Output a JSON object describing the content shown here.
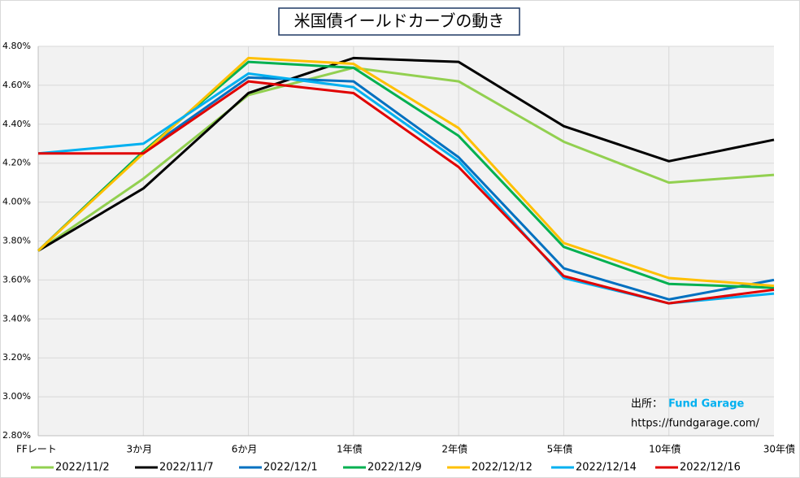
{
  "chart_data": {
    "type": "line",
    "title": "米国債イールドカーブの動き",
    "categories": [
      "FFレート",
      "3か月",
      "6か月",
      "1年債",
      "2年債",
      "5年債",
      "10年債",
      "30年債"
    ],
    "series": [
      {
        "name": "2022/11/2",
        "color": "#92d050",
        "values": [
          3.75,
          4.12,
          4.55,
          4.69,
          4.62,
          4.31,
          4.1,
          4.14
        ]
      },
      {
        "name": "2022/11/7",
        "color": "#000000",
        "values": [
          3.75,
          4.07,
          4.56,
          4.74,
          4.72,
          4.39,
          4.21,
          4.32
        ]
      },
      {
        "name": "2022/12/1",
        "color": "#0070c0",
        "values": [
          3.75,
          4.26,
          4.64,
          4.62,
          4.23,
          3.66,
          3.5,
          3.6
        ]
      },
      {
        "name": "2022/12/9",
        "color": "#00b050",
        "values": [
          3.75,
          4.26,
          4.72,
          4.69,
          4.34,
          3.77,
          3.58,
          3.56
        ]
      },
      {
        "name": "2022/12/12",
        "color": "#ffc000",
        "values": [
          3.75,
          4.25,
          4.74,
          4.71,
          4.38,
          3.79,
          3.61,
          3.57
        ]
      },
      {
        "name": "2022/12/14",
        "color": "#00b0f0",
        "values": [
          4.25,
          4.3,
          4.66,
          4.59,
          4.21,
          3.61,
          3.48,
          3.53
        ]
      },
      {
        "name": "2022/12/16",
        "color": "#e00000",
        "values": [
          4.25,
          4.25,
          4.62,
          4.56,
          4.18,
          3.62,
          3.48,
          3.55
        ]
      }
    ],
    "ylim": [
      2.8,
      4.8
    ],
    "yticks": [
      {
        "value": 2.8,
        "label": "2.80%"
      },
      {
        "value": 3.0,
        "label": "3.00%"
      },
      {
        "value": 3.2,
        "label": "3.20%"
      },
      {
        "value": 3.4,
        "label": "3.40%"
      },
      {
        "value": 3.6,
        "label": "3.60%"
      },
      {
        "value": 3.8,
        "label": "3.80%"
      },
      {
        "value": 4.0,
        "label": "4.00%"
      },
      {
        "value": 4.2,
        "label": "4.20%"
      },
      {
        "value": 4.4,
        "label": "4.40%"
      },
      {
        "value": 4.6,
        "label": "4.60%"
      },
      {
        "value": 4.8,
        "label": "4.80%"
      }
    ],
    "grid": true,
    "legend": "bottom",
    "source_label": "出所：",
    "source_name": "Fund Garage",
    "source_url": "https://fundgarage.com/"
  }
}
